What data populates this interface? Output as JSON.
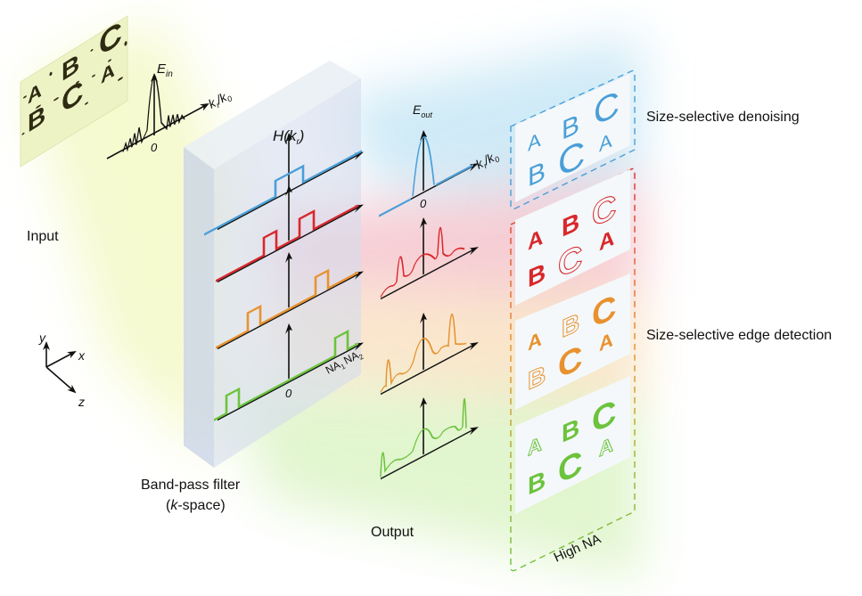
{
  "labels": {
    "input": "Input",
    "filter_line1": "Band-pass filter",
    "filter_line2_open": "(",
    "filter_line2_k": "k",
    "filter_line2_rest": "-space)",
    "output": "Output",
    "denoising": "Size-selective denoising",
    "edge_detection": "Size-selective edge detection",
    "high_na": "High NA"
  },
  "axes": {
    "e_in": "E",
    "e_in_sub": "in",
    "e_out": "E",
    "e_out_sub": "out",
    "h": "H(k",
    "h_sub": "r",
    "h_close": ")",
    "k_axis": "k",
    "k_axis_sub": "r",
    "k_axis_slash": "/k",
    "k_axis_sub0": "0",
    "zero": "0",
    "na1": "NA",
    "na1_sub": "1",
    "na2": "NA",
    "na2_sub": "2",
    "coord_x": "x",
    "coord_y": "y",
    "coord_z": "z"
  },
  "letters": [
    "A",
    "B",
    "C",
    "B",
    "C",
    "A"
  ],
  "colors": {
    "blue": "#4a9fd8",
    "red": "#d8282c",
    "orange": "#e8922f",
    "green": "#6cc33d",
    "input_text": "#2e2b12"
  }
}
